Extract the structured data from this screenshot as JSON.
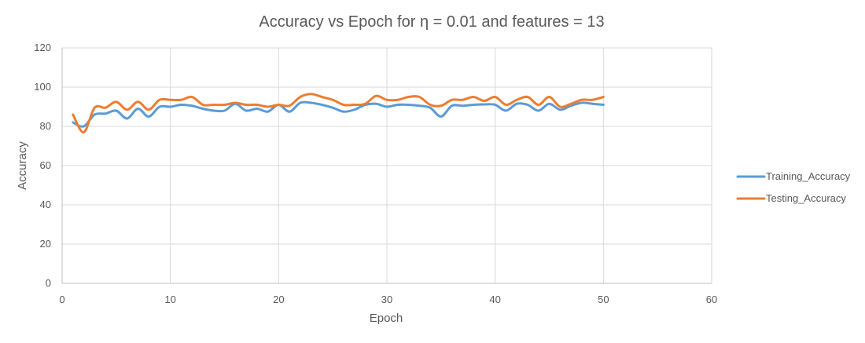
{
  "chart_data": {
    "type": "line",
    "title": "Accuracy vs Epoch for η = 0.01 and features = 13",
    "xlabel": "Epoch",
    "ylabel": "Accuracy",
    "xlim": [
      0,
      60
    ],
    "ylim": [
      0,
      120
    ],
    "xticks": [
      0,
      10,
      20,
      30,
      40,
      50,
      60
    ],
    "yticks": [
      0,
      20,
      40,
      60,
      80,
      100,
      120
    ],
    "grid": true,
    "legend_position": "right",
    "series": [
      {
        "name": "Training_Accuracy",
        "color": "#5b9bd5",
        "x": [
          1,
          2,
          3,
          4,
          5,
          6,
          7,
          8,
          9,
          10,
          11,
          12,
          13,
          14,
          15,
          16,
          17,
          18,
          19,
          20,
          21,
          22,
          23,
          24,
          25,
          26,
          27,
          28,
          29,
          30,
          31,
          32,
          33,
          34,
          35,
          36,
          37,
          38,
          39,
          40,
          41,
          42,
          43,
          44,
          45,
          46,
          47,
          48,
          49,
          50
        ],
        "y": [
          82,
          80,
          86,
          86.5,
          88,
          84,
          89,
          85,
          90,
          90,
          91,
          90.5,
          89,
          88,
          88,
          91.5,
          88,
          89,
          87.5,
          91,
          87.5,
          92,
          92,
          91,
          89.5,
          87.5,
          88.5,
          91,
          91.5,
          90,
          91,
          91,
          90.5,
          89.5,
          85,
          90.5,
          90.5,
          91,
          91.2,
          91,
          88,
          91.5,
          91,
          88,
          91.5,
          88.5,
          90.5,
          92,
          91.5,
          91
        ]
      },
      {
        "name": "Testing_Accuracy",
        "color": "#ed7d31",
        "x": [
          1,
          2,
          3,
          4,
          5,
          6,
          7,
          8,
          9,
          10,
          11,
          12,
          13,
          14,
          15,
          16,
          17,
          18,
          19,
          20,
          21,
          22,
          23,
          24,
          25,
          26,
          27,
          28,
          29,
          30,
          31,
          32,
          33,
          34,
          35,
          36,
          37,
          38,
          39,
          40,
          41,
          42,
          43,
          44,
          45,
          46,
          47,
          48,
          49,
          50
        ],
        "y": [
          86,
          77,
          89.5,
          89.5,
          92.5,
          88.5,
          92.5,
          88.5,
          93.5,
          93.5,
          93.5,
          95,
          91,
          91,
          91,
          92,
          91,
          91,
          90,
          91,
          90.5,
          95,
          96.5,
          95,
          93.5,
          91,
          91,
          91.5,
          95.5,
          93.5,
          93.5,
          95,
          95,
          91,
          90.5,
          93.5,
          93.5,
          95,
          93,
          95,
          91,
          93.5,
          95,
          91,
          95,
          90,
          91.5,
          93.5,
          93.5,
          95
        ]
      }
    ]
  }
}
